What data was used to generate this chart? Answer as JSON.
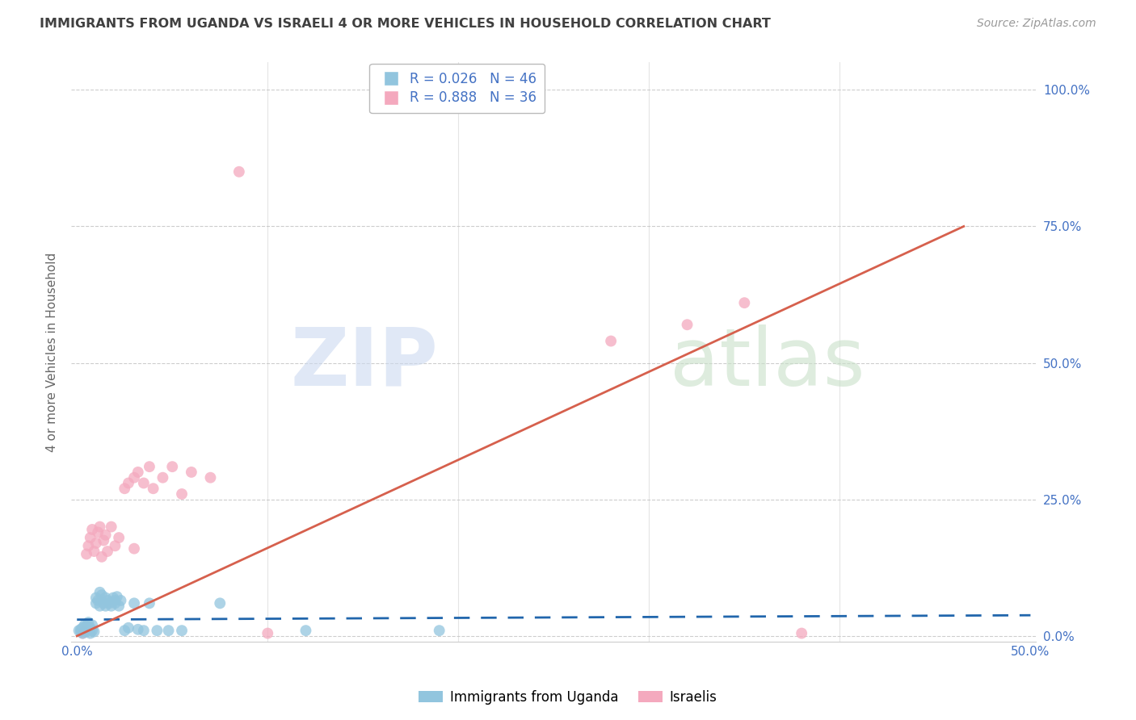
{
  "title": "IMMIGRANTS FROM UGANDA VS ISRAELI 4 OR MORE VEHICLES IN HOUSEHOLD CORRELATION CHART",
  "source": "Source: ZipAtlas.com",
  "ylabel": "4 or more Vehicles in Household",
  "xlabel_blue": "Immigrants from Uganda",
  "xlabel_pink": "Israelis",
  "xlim": [
    0.0,
    0.5
  ],
  "ylim": [
    0.0,
    1.05
  ],
  "xticks": [
    0.0,
    0.1,
    0.2,
    0.3,
    0.4,
    0.5
  ],
  "yticks": [
    0.0,
    0.25,
    0.5,
    0.75,
    1.0
  ],
  "xtick_labels": [
    "0.0%",
    "",
    "",
    "",
    "",
    "50.0%"
  ],
  "ytick_labels": [
    "0.0%",
    "25.0%",
    "50.0%",
    "75.0%",
    "100.0%"
  ],
  "legend_blue_r": "R = 0.026",
  "legend_blue_n": "N = 46",
  "legend_pink_r": "R = 0.888",
  "legend_pink_n": "N = 36",
  "blue_color": "#92c5de",
  "pink_color": "#f4a9be",
  "blue_line_color": "#2166ac",
  "pink_line_color": "#d6604d",
  "title_color": "#404040",
  "axis_color": "#4472C4",
  "grid_color": "#c8c8c8",
  "watermark_zip_color": "#ccd9f0",
  "watermark_atlas_color": "#c8e0c8",
  "blue_scatter_x": [
    0.001,
    0.002,
    0.002,
    0.003,
    0.003,
    0.004,
    0.004,
    0.005,
    0.005,
    0.006,
    0.006,
    0.007,
    0.007,
    0.008,
    0.008,
    0.009,
    0.01,
    0.01,
    0.011,
    0.012,
    0.012,
    0.013,
    0.014,
    0.015,
    0.015,
    0.016,
    0.017,
    0.018,
    0.019,
    0.02,
    0.02,
    0.021,
    0.022,
    0.023,
    0.025,
    0.027,
    0.03,
    0.032,
    0.035,
    0.038,
    0.042,
    0.048,
    0.055,
    0.075,
    0.12,
    0.19
  ],
  "blue_scatter_y": [
    0.01,
    0.012,
    0.008,
    0.015,
    0.005,
    0.02,
    0.01,
    0.018,
    0.008,
    0.025,
    0.012,
    0.015,
    0.005,
    0.02,
    0.01,
    0.008,
    0.06,
    0.07,
    0.065,
    0.08,
    0.055,
    0.075,
    0.06,
    0.07,
    0.055,
    0.065,
    0.06,
    0.055,
    0.07,
    0.065,
    0.06,
    0.072,
    0.055,
    0.065,
    0.01,
    0.015,
    0.06,
    0.012,
    0.01,
    0.06,
    0.01,
    0.01,
    0.01,
    0.06,
    0.01,
    0.01
  ],
  "pink_scatter_x": [
    0.003,
    0.004,
    0.005,
    0.006,
    0.007,
    0.008,
    0.009,
    0.01,
    0.011,
    0.012,
    0.013,
    0.014,
    0.015,
    0.016,
    0.018,
    0.02,
    0.022,
    0.025,
    0.027,
    0.03,
    0.03,
    0.032,
    0.035,
    0.038,
    0.04,
    0.045,
    0.05,
    0.055,
    0.06,
    0.07,
    0.085,
    0.1,
    0.28,
    0.32,
    0.35,
    0.38
  ],
  "pink_scatter_y": [
    0.005,
    0.008,
    0.15,
    0.165,
    0.18,
    0.195,
    0.155,
    0.17,
    0.19,
    0.2,
    0.145,
    0.175,
    0.185,
    0.155,
    0.2,
    0.165,
    0.18,
    0.27,
    0.28,
    0.29,
    0.16,
    0.3,
    0.28,
    0.31,
    0.27,
    0.29,
    0.31,
    0.26,
    0.3,
    0.29,
    0.85,
    0.005,
    0.54,
    0.57,
    0.61,
    0.005
  ],
  "blue_line_x": [
    0.0,
    0.5
  ],
  "blue_line_y": [
    0.03,
    0.038
  ],
  "pink_line_x": [
    0.0,
    0.465
  ],
  "pink_line_y": [
    0.0,
    0.75
  ]
}
